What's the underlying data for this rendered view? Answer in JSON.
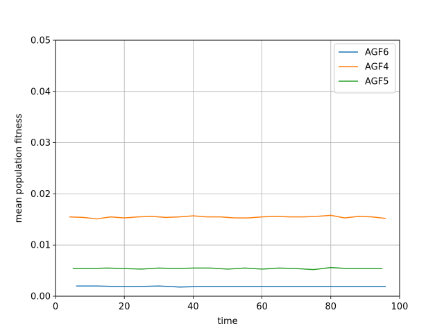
{
  "chart_data": {
    "type": "line",
    "xlabel": "time",
    "ylabel": "mean population fitness",
    "xlim": [
      0,
      100
    ],
    "ylim": [
      0,
      0.05
    ],
    "xticks": [
      0,
      20,
      40,
      60,
      80,
      100
    ],
    "xtick_labels": [
      "0",
      "20",
      "40",
      "60",
      "80",
      "100"
    ],
    "yticks": [
      0,
      0.01,
      0.02,
      0.03,
      0.04,
      0.05
    ],
    "ytick_labels": [
      "0.00",
      "0.01",
      "0.02",
      "0.03",
      "0.04",
      "0.05"
    ],
    "grid": true,
    "legend_position": "top-right",
    "series": [
      {
        "name": "AGF6",
        "color": "#1f77b4",
        "x": [
          6,
          12,
          18,
          24,
          30,
          36,
          42,
          48,
          54,
          60,
          66,
          72,
          78,
          84,
          90,
          96
        ],
        "y": [
          0.002,
          0.002,
          0.0019,
          0.0019,
          0.002,
          0.0018,
          0.0019,
          0.0019,
          0.0019,
          0.0019,
          0.0019,
          0.0019,
          0.0019,
          0.0019,
          0.0019,
          0.0019
        ]
      },
      {
        "name": "AGF4",
        "color": "#ff7f0e",
        "x": [
          4,
          8,
          12,
          16,
          20,
          24,
          28,
          32,
          36,
          40,
          44,
          48,
          52,
          56,
          60,
          64,
          68,
          72,
          76,
          80,
          84,
          88,
          92,
          96
        ],
        "y": [
          0.0155,
          0.0154,
          0.0151,
          0.0155,
          0.0153,
          0.0155,
          0.0156,
          0.0154,
          0.0155,
          0.0157,
          0.0155,
          0.0155,
          0.0153,
          0.0153,
          0.0155,
          0.0156,
          0.0155,
          0.0155,
          0.0156,
          0.0158,
          0.0153,
          0.0156,
          0.0155,
          0.0152
        ]
      },
      {
        "name": "AGF5",
        "color": "#2ca02c",
        "x": [
          5,
          10,
          15,
          20,
          25,
          30,
          35,
          40,
          45,
          50,
          55,
          60,
          65,
          70,
          75,
          80,
          85,
          90,
          95
        ],
        "y": [
          0.0054,
          0.0054,
          0.0055,
          0.0054,
          0.0053,
          0.0055,
          0.0054,
          0.0055,
          0.0055,
          0.0053,
          0.0055,
          0.0053,
          0.0055,
          0.0054,
          0.0052,
          0.0056,
          0.0054,
          0.0054,
          0.0054
        ]
      }
    ]
  }
}
